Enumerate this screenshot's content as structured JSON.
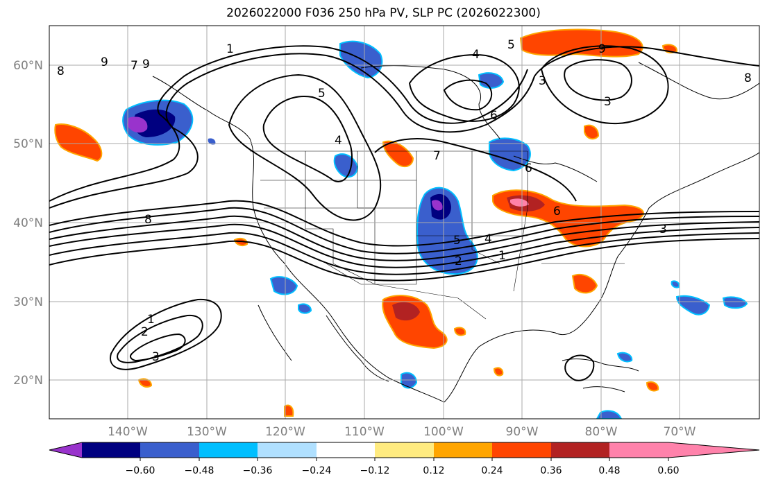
{
  "title": "2026022000 F036 250 hPa PV, SLP PC (2026022300)",
  "lat_labels": [
    "60°N",
    "50°N",
    "40°N",
    "30°N",
    "20°N"
  ],
  "lon_labels": [
    "140°W",
    "130°W",
    "120°W",
    "110°W",
    "100°W",
    "90°W",
    "80°W",
    "70°W"
  ],
  "colorbar": {
    "colors": [
      "#9933cc",
      "#000080",
      "#3a5fcd",
      "#00bfff",
      "#b0e0ff",
      "#ffffff",
      "#ffeb80",
      "#ffa500",
      "#ff4500",
      "#b22222",
      "#ff82ab"
    ],
    "tick_labels": [
      "−0.60",
      "−0.48",
      "−0.36",
      "−0.24",
      "−0.12",
      "0.12",
      "0.24",
      "0.36",
      "0.48",
      "0.60"
    ]
  },
  "contour_labels": [
    "9",
    "8",
    "7",
    "9",
    "1",
    "5",
    "4",
    "4",
    "5",
    "9",
    "3",
    "8",
    "6",
    "7",
    "6",
    "6",
    "3",
    "5",
    "4",
    "2",
    "1",
    "8",
    "1",
    "2",
    "3",
    "3"
  ]
}
